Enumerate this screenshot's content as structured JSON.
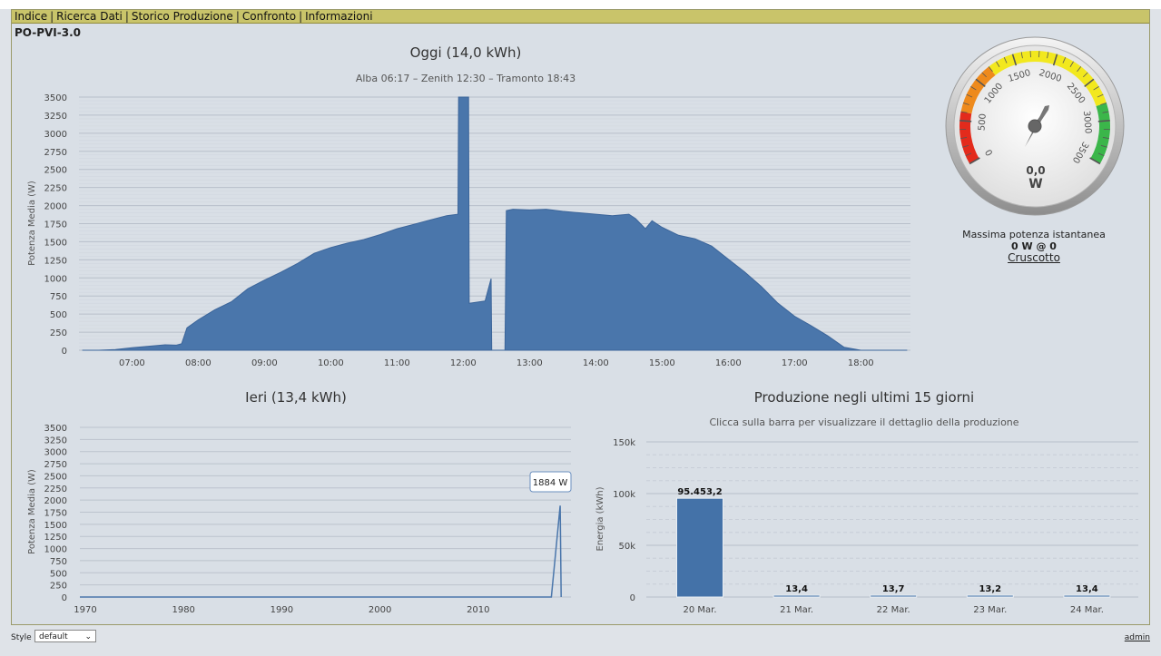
{
  "menu": {
    "items": [
      "Indice",
      "Ricerca Dati",
      "Storico Produzione",
      "Confronto",
      "Informazioni"
    ]
  },
  "device": {
    "name": "PO-PVI-3.0"
  },
  "today_chart": {
    "title": "Oggi (14,0 kWh)",
    "subtitle": "Alba 06:17 – Zenith 12:30 – Tramonto 18:43",
    "ylabel": "Potenza Media (W)",
    "yticks": [
      "0",
      "250",
      "500",
      "750",
      "1000",
      "1250",
      "1500",
      "1750",
      "2000",
      "2250",
      "2500",
      "2750",
      "3000",
      "3250",
      "3500"
    ],
    "xticks": [
      "07:00",
      "08:00",
      "09:00",
      "10:00",
      "11:00",
      "12:00",
      "13:00",
      "14:00",
      "15:00",
      "16:00",
      "17:00",
      "18:00"
    ]
  },
  "yesterday_chart": {
    "title": "Ieri (13,4 kWh)",
    "ylabel": "Potenza Media (W)",
    "yticks": [
      "0",
      "250",
      "500",
      "750",
      "1000",
      "1250",
      "1500",
      "1750",
      "2000",
      "2250",
      "2500",
      "2750",
      "3000",
      "3250",
      "3500"
    ],
    "xticks": [
      "1970",
      "1980",
      "1990",
      "2000",
      "2010"
    ],
    "tooltip": "1884 W"
  },
  "production_chart": {
    "title": "Produzione negli ultimi 15 giorni",
    "subtitle": "Clicca sulla barra per visualizzare il dettaglio della produzione",
    "ylabel": "Energia (kWh)",
    "yticks": [
      "0",
      "50k",
      "100k",
      "150k"
    ]
  },
  "gauge": {
    "ticks": [
      "0",
      "500",
      "1000",
      "1500",
      "2000",
      "2500",
      "3000",
      "3500"
    ],
    "value_text": "0,0",
    "unit": "W",
    "max_label": "Massima potenza istantanea",
    "max_value": "0 W @ 0",
    "link": "Cruscotto",
    "colors": {
      "red": "#e32b1c",
      "orange": "#ee8a1c",
      "yellow": "#f2e81e",
      "green": "#3bb64a"
    }
  },
  "footer": {
    "style_label": "Style :",
    "style_value": "default",
    "user": "admin"
  },
  "colors": {
    "area": "#4a76ab",
    "bar": "#4472a8",
    "menubar": "#c9c46a"
  },
  "chart_data": [
    {
      "type": "area",
      "title": "Oggi (14,0 kWh)",
      "ylabel": "Potenza Media (W)",
      "ylim": [
        0,
        3500
      ],
      "x_unit": "hour of day",
      "xlim": [
        6.2,
        18.75
      ],
      "series": [
        {
          "x": [
            6.25,
            6.5,
            6.75,
            7.0,
            7.25,
            7.5,
            7.67,
            7.75,
            7.83,
            8.0,
            8.25,
            8.5,
            8.75,
            9.0,
            9.25,
            9.5,
            9.75,
            10.0,
            10.25,
            10.5,
            10.75,
            11.0,
            11.25,
            11.5,
            11.75,
            11.92,
            11.93,
            12.08,
            12.09,
            12.33,
            12.42,
            12.43,
            12.63,
            12.65,
            12.75,
            13.0,
            13.25,
            13.5,
            13.75,
            14.0,
            14.25,
            14.5,
            14.6,
            14.75,
            14.85,
            15.0,
            15.25,
            15.5,
            15.75,
            16.0,
            16.25,
            16.5,
            16.75,
            17.0,
            17.25,
            17.5,
            17.75,
            18.0,
            18.2,
            18.25,
            18.4,
            18.5,
            18.7
          ],
          "y": [
            0,
            0,
            10,
            35,
            55,
            75,
            70,
            90,
            310,
            420,
            560,
            670,
            850,
            970,
            1080,
            1200,
            1340,
            1420,
            1480,
            1530,
            1600,
            1680,
            1740,
            1800,
            1860,
            1880,
            3500,
            3500,
            650,
            680,
            990,
            0,
            0,
            1930,
            1950,
            1940,
            1950,
            1920,
            1900,
            1880,
            1860,
            1880,
            1820,
            1680,
            1790,
            1700,
            1590,
            1540,
            1440,
            1260,
            1080,
            880,
            650,
            470,
            340,
            200,
            40,
            0,
            0,
            0,
            0,
            0,
            0
          ]
        }
      ]
    },
    {
      "type": "line",
      "title": "Ieri (13,4 kWh)",
      "ylabel": "Potenza Media (W)",
      "ylim": [
        0,
        3500
      ],
      "xlim": [
        1970,
        2020
      ],
      "series": [
        {
          "x": [
            1970,
            2018,
            2018.9,
            2019
          ],
          "y": [
            0,
            0,
            1884,
            0
          ]
        }
      ]
    },
    {
      "type": "bar",
      "title": "Produzione negli ultimi 15 giorni",
      "ylabel": "Energia (kWh)",
      "ylim": [
        0,
        150000
      ],
      "categories": [
        "20 Mar.",
        "21 Mar.",
        "22 Mar.",
        "23 Mar.",
        "24 Mar."
      ],
      "values": [
        95453.2,
        13.4,
        13.7,
        13.2,
        13.4
      ],
      "labels": [
        "95.453,2",
        "13,4",
        "13,7",
        "13,2",
        "13,4"
      ]
    }
  ]
}
